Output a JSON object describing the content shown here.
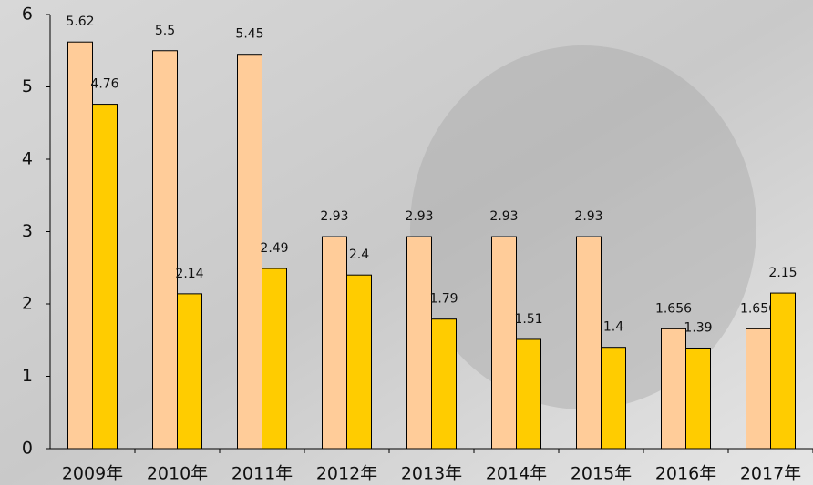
{
  "chart_data": {
    "type": "bar",
    "categories": [
      "2009年",
      "2010年",
      "2011年",
      "2012年",
      "2013年",
      "2014年",
      "2015年",
      "2016年",
      "2017年"
    ],
    "series": [
      {
        "color": "#FFCC99",
        "values": [
          5.62,
          5.5,
          5.45,
          2.93,
          2.93,
          2.93,
          2.93,
          1.656,
          1.656
        ]
      },
      {
        "color": "#FFCC00",
        "values": [
          4.76,
          2.14,
          2.49,
          2.4,
          1.79,
          1.51,
          1.4,
          1.39,
          2.15
        ]
      }
    ],
    "ylim": [
      0,
      6
    ],
    "yticks": [
      0,
      1,
      2,
      3,
      4,
      5,
      6
    ],
    "grid": false
  }
}
